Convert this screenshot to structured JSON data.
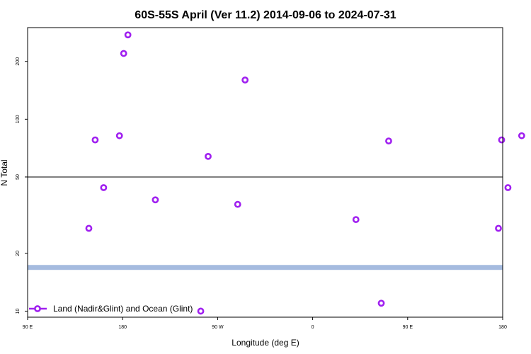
{
  "chart_data": {
    "type": "scatter",
    "title": "60S-55S April (Ver 11.2)   2014-09-06 to 2024-07-31",
    "xlabel": "Longitude (deg E)",
    "ylabel": "N Total",
    "x_axis": {
      "range_deg_east": [
        90,
        450
      ],
      "ticks": [
        {
          "value": 90,
          "label": "90 E"
        },
        {
          "value": 180,
          "label": "180"
        },
        {
          "value": 270,
          "label": "90 W"
        },
        {
          "value": 360,
          "label": "0"
        },
        {
          "value": 450,
          "label": "90 E"
        },
        {
          "value": 540,
          "label": "180"
        }
      ],
      "note": "longitude in degrees east, continuous from 90 E eastward through 180 and 0 to 180"
    },
    "y_axis": {
      "scale": "log",
      "range": [
        9.3,
        300
      ],
      "ticks": [
        {
          "value": 10,
          "label": "10"
        },
        {
          "value": 20,
          "label": "20"
        },
        {
          "value": 50,
          "label": "50"
        },
        {
          "value": 100,
          "label": "100"
        },
        {
          "value": 200,
          "label": "200"
        }
      ]
    },
    "reference_line": {
      "y": 50,
      "color": "#000000"
    },
    "band": {
      "y_low": 16.4,
      "y_high": 17.4,
      "color": "#a5bbdf"
    },
    "series": [
      {
        "name": "Land (Nadir&Glint) and Ocean (Glint)",
        "color": "#a020f0",
        "marker": "open-circle",
        "points": [
          {
            "x": 148,
            "y": 27
          },
          {
            "x": 154,
            "y": 78
          },
          {
            "x": 162,
            "y": 44
          },
          {
            "x": 177,
            "y": 82
          },
          {
            "x": 181,
            "y": 220
          },
          {
            "x": 185,
            "y": 275
          },
          {
            "x": 211,
            "y": 38
          },
          {
            "x": 261,
            "y": 64
          },
          {
            "x": 254,
            "y": 10
          },
          {
            "x": 289,
            "y": 36
          },
          {
            "x": 296,
            "y": 160
          },
          {
            "x": 401,
            "y": 30
          },
          {
            "x": 425,
            "y": 11
          },
          {
            "x": 432,
            "y": 77
          },
          {
            "x": 536,
            "y": 27
          },
          {
            "x": 539,
            "y": 78
          },
          {
            "x": 545,
            "y": 44
          },
          {
            "x": 558,
            "y": 82
          }
        ]
      }
    ],
    "legend": {
      "position": "bottom-left"
    },
    "grid": false
  }
}
